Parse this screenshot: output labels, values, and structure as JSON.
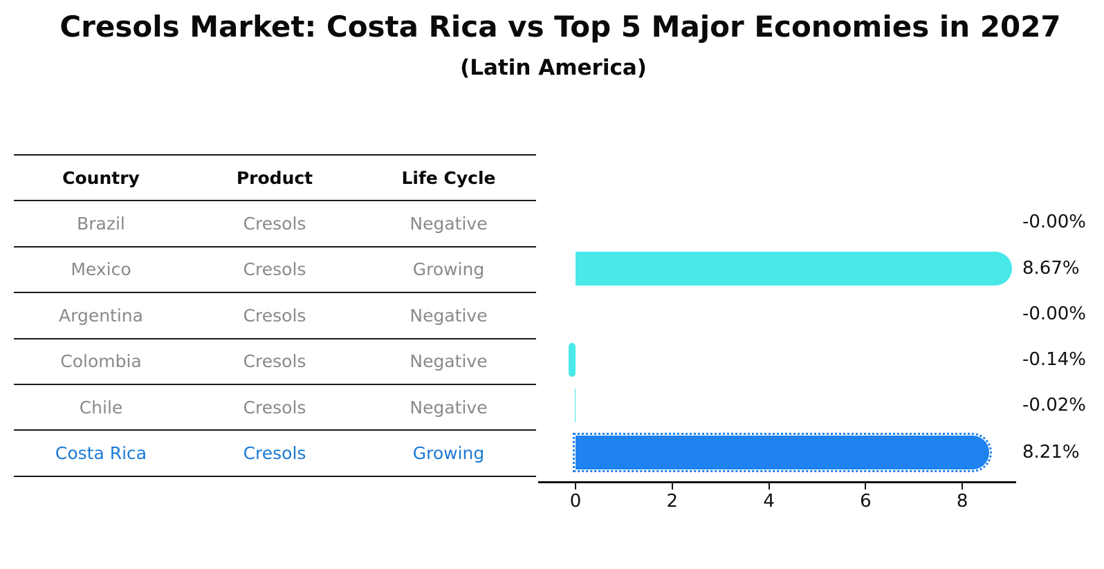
{
  "title": "Cresols Market: Costa Rica vs Top 5 Major Economies in 2027",
  "subtitle": "(Latin America)",
  "table": {
    "headers": [
      "Country",
      "Product",
      "Life Cycle"
    ],
    "rows": [
      {
        "country": "Brazil",
        "product": "Cresols",
        "life_cycle": "Negative",
        "highlighted": false
      },
      {
        "country": "Mexico",
        "product": "Cresols",
        "life_cycle": "Growing",
        "highlighted": false
      },
      {
        "country": "Argentina",
        "product": "Cresols",
        "life_cycle": "Negative",
        "highlighted": false
      },
      {
        "country": "Colombia",
        "product": "Cresols",
        "life_cycle": "Negative",
        "highlighted": false
      },
      {
        "country": "Chile",
        "product": "Cresols",
        "life_cycle": "Negative",
        "highlighted": false
      },
      {
        "country": "Costa Rica",
        "product": "Cresols",
        "life_cycle": "Growing",
        "highlighted": true
      }
    ]
  },
  "chart_data": {
    "type": "bar",
    "orientation": "horizontal",
    "title": "Cresols Market: Costa Rica vs Top 5 Major Economies in 2027",
    "subtitle": "(Latin America)",
    "categories": [
      "Brazil",
      "Mexico",
      "Argentina",
      "Colombia",
      "Chile",
      "Costa Rica"
    ],
    "values": [
      -0.0,
      8.67,
      -0.0,
      -0.14,
      -0.02,
      8.21
    ],
    "value_labels": [
      "-0.00%",
      "8.67%",
      "-0.00%",
      "-0.14%",
      "-0.02%",
      "8.21%"
    ],
    "unit": "%",
    "xticks": [
      0,
      2,
      4,
      6,
      8
    ],
    "xlim": [
      -0.8,
      9.1
    ],
    "grid": false,
    "legend": false,
    "highlight_index": 5,
    "bar_color_default": "#4AE8E8",
    "bar_color_highlight": "#1E82F0"
  },
  "colors": {
    "highlight_text": "#1E7AD4",
    "row_text": "#8a8a8a",
    "header_text": "#0a0a0a",
    "axis": "#111111",
    "value_label_text": "#111111"
  }
}
